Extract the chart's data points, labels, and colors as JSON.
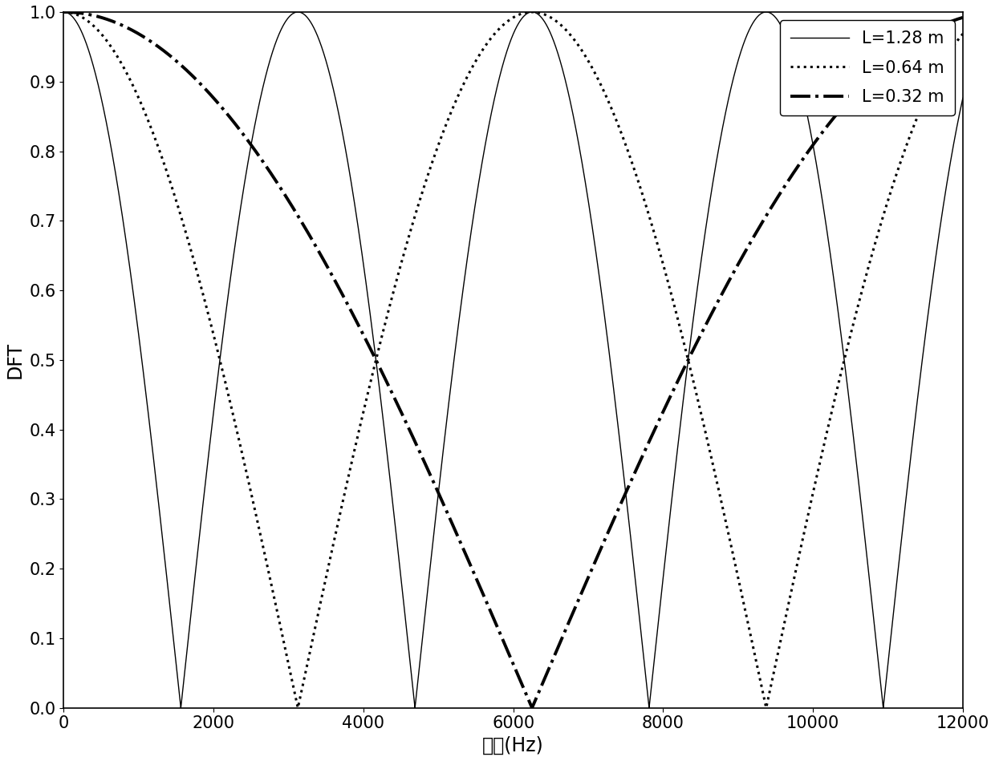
{
  "title": "",
  "xlabel": "频率(Hz)",
  "ylabel": "DFT",
  "xlim": [
    0,
    12000
  ],
  "ylim": [
    0,
    1.0
  ],
  "xticks": [
    0,
    2000,
    4000,
    6000,
    8000,
    10000,
    12000
  ],
  "yticks": [
    0,
    0.1,
    0.2,
    0.3,
    0.4,
    0.5,
    0.6,
    0.7,
    0.8,
    0.9,
    1
  ],
  "fmax": 12000,
  "npoints": 80000,
  "speed_of_sound": 4000,
  "lengths": [
    1.28,
    0.64,
    0.32
  ],
  "labels": [
    "L=1.28 m",
    "L=0.64 m",
    "L=0.32 m"
  ],
  "linestyles": [
    "-",
    ":",
    "-."
  ],
  "linewidths": [
    1.0,
    2.2,
    2.8
  ],
  "color": "#000000",
  "background_color": "#ffffff",
  "legend_loc": "upper right",
  "legend_fontsize": 15,
  "axis_fontsize": 17,
  "tick_fontsize": 15
}
